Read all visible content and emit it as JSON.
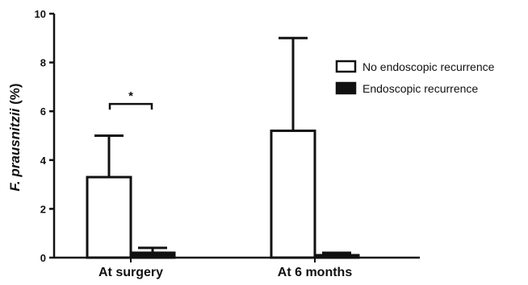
{
  "chart_data": {
    "type": "bar",
    "title": "",
    "xlabel": "",
    "ylabel_italic": "F. prausnitzii",
    "ylabel_rest": " (%)",
    "ylim": [
      0,
      10
    ],
    "yticks": [
      "0",
      "2",
      "4",
      "6",
      "8",
      "10"
    ],
    "categories": [
      "At surgery",
      "At 6 months"
    ],
    "series": [
      {
        "name": "No endoscopic recurrence",
        "fill": "#ffffff",
        "values": [
          3.3,
          5.2
        ],
        "error_upper": [
          5.0,
          9.0
        ]
      },
      {
        "name": "Endoscopic recurrence",
        "fill": "#111111",
        "values": [
          0.2,
          0.1
        ],
        "error_upper": [
          0.4,
          0.2
        ]
      }
    ],
    "legend_position": "right",
    "annotations": [
      {
        "text": "*",
        "category": "At surgery",
        "bracket_value": 6.3
      }
    ],
    "grid": false
  },
  "colors": {
    "axis": "#111111",
    "background": "#ffffff"
  }
}
